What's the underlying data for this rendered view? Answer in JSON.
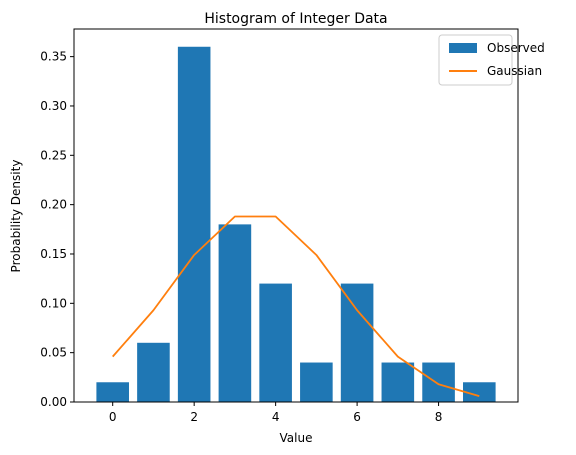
{
  "chart_data": {
    "type": "bar",
    "title": "Histogram of Integer Data",
    "xlabel": "Value",
    "ylabel": "Probability Density",
    "xlim": [
      -0.95,
      9.95
    ],
    "ylim": [
      0,
      0.378
    ],
    "xticks": [
      "0",
      "2",
      "4",
      "6",
      "8"
    ],
    "yticks": [
      "0.00",
      "0.05",
      "0.10",
      "0.15",
      "0.20",
      "0.25",
      "0.30",
      "0.35"
    ],
    "grid": false,
    "legend_position": "top-right",
    "series": [
      {
        "name": "Observed",
        "kind": "bar",
        "color": "#1f77b4",
        "x": [
          0,
          1,
          2,
          3,
          4,
          5,
          6,
          7,
          8,
          9
        ],
        "values": [
          0.02,
          0.06,
          0.36,
          0.18,
          0.12,
          0.04,
          0.12,
          0.04,
          0.04,
          0.02
        ]
      },
      {
        "name": "Gaussian",
        "kind": "line",
        "color": "#ff7f0e",
        "x": [
          0,
          1,
          2,
          3,
          4,
          5,
          6,
          7,
          8,
          9
        ],
        "values": [
          0.046,
          0.093,
          0.149,
          0.188,
          0.188,
          0.149,
          0.093,
          0.046,
          0.018,
          0.006
        ]
      }
    ]
  }
}
